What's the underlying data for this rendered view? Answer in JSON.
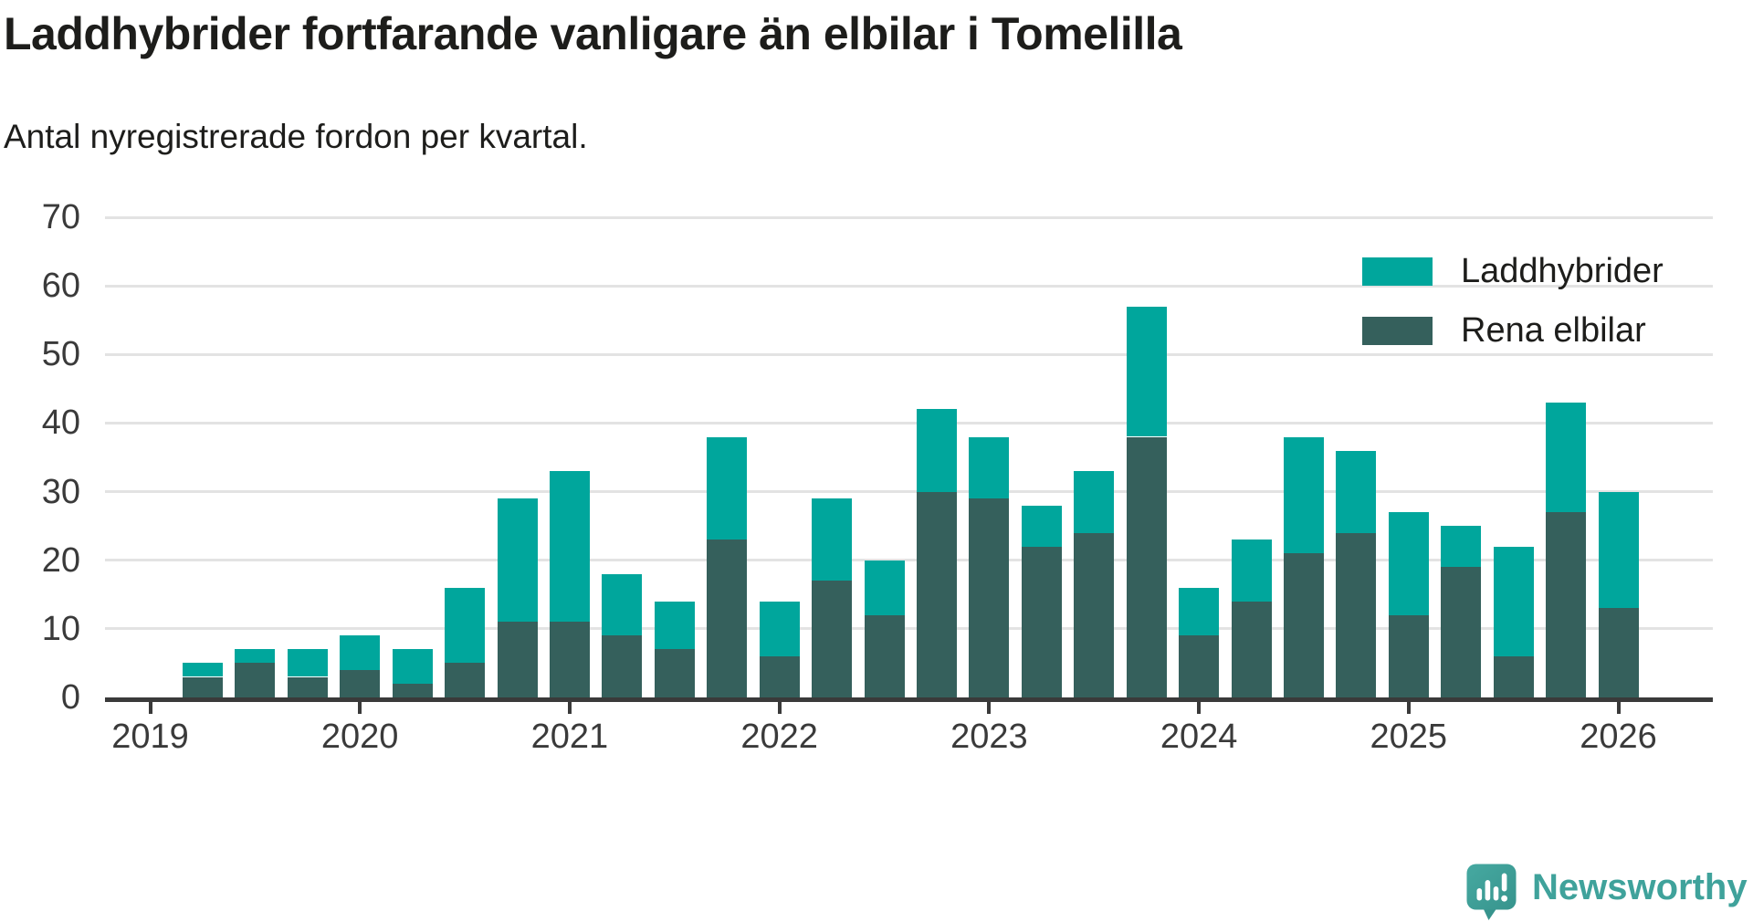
{
  "title": "Laddhybrider fortfarande vanligare än elbilar i Tomelilla",
  "subtitle": "Antal nyregistrerade fordon per kvartal.",
  "legend": {
    "items": [
      {
        "label": "Laddhybrider",
        "color": "#00a69c"
      },
      {
        "label": "Rena elbilar",
        "color": "#35605c"
      }
    ]
  },
  "y_axis": {
    "ticks": [
      0,
      10,
      20,
      30,
      40,
      50,
      60,
      70
    ]
  },
  "x_axis": {
    "years": [
      "2019",
      "2020",
      "2021",
      "2022",
      "2023",
      "2024",
      "2025",
      "2026"
    ]
  },
  "chart_data": {
    "type": "bar",
    "stacked": true,
    "title": "Laddhybrider fortfarande vanligare än elbilar i Tomelilla",
    "subtitle": "Antal nyregistrerade fordon per kvartal.",
    "xlabel": "",
    "ylabel": "",
    "ylim": [
      0,
      70
    ],
    "grid": true,
    "legend_position": "top-right",
    "categories": [
      "2019 Q2",
      "2019 Q3",
      "2019 Q4",
      "2020 Q1",
      "2020 Q2",
      "2020 Q3",
      "2020 Q4",
      "2021 Q1",
      "2021 Q2",
      "2021 Q3",
      "2021 Q4",
      "2022 Q1",
      "2022 Q2",
      "2022 Q3",
      "2022 Q4",
      "2023 Q1",
      "2023 Q2",
      "2023 Q3",
      "2023 Q4",
      "2024 Q1",
      "2024 Q2",
      "2024 Q3",
      "2024 Q4",
      "2025 Q1",
      "2025 Q2",
      "2025 Q3",
      "2025 Q4",
      "2026 Q1"
    ],
    "stack_order": [
      "Rena elbilar",
      "Laddhybrider"
    ],
    "series": [
      {
        "name": "Laddhybrider",
        "color": "#00a69c",
        "values": [
          2,
          2,
          4,
          5,
          5,
          11,
          18,
          22,
          9,
          7,
          15,
          8,
          12,
          8,
          12,
          9,
          6,
          9,
          19,
          7,
          9,
          17,
          12,
          15,
          6,
          16,
          16,
          17
        ]
      },
      {
        "name": "Rena elbilar",
        "color": "#35605c",
        "values": [
          3,
          5,
          3,
          4,
          2,
          5,
          11,
          11,
          9,
          7,
          23,
          6,
          17,
          12,
          30,
          29,
          22,
          24,
          38,
          9,
          14,
          21,
          24,
          12,
          19,
          6,
          27,
          13
        ]
      }
    ],
    "totals": [
      5,
      7,
      7,
      9,
      7,
      16,
      29,
      33,
      18,
      14,
      38,
      14,
      29,
      20,
      42,
      38,
      28,
      33,
      57,
      16,
      23,
      38,
      36,
      27,
      25,
      22,
      43,
      30
    ]
  },
  "logo": {
    "text": "Newsworthy",
    "color": "#3fa29b"
  },
  "colors": {
    "laddhybrider": "#00a69c",
    "rena_elbilar": "#35605c",
    "gridline": "#e3e3e3",
    "axis": "#3a3a3a",
    "text": "#1d1d1b",
    "background": "#ffffff"
  }
}
